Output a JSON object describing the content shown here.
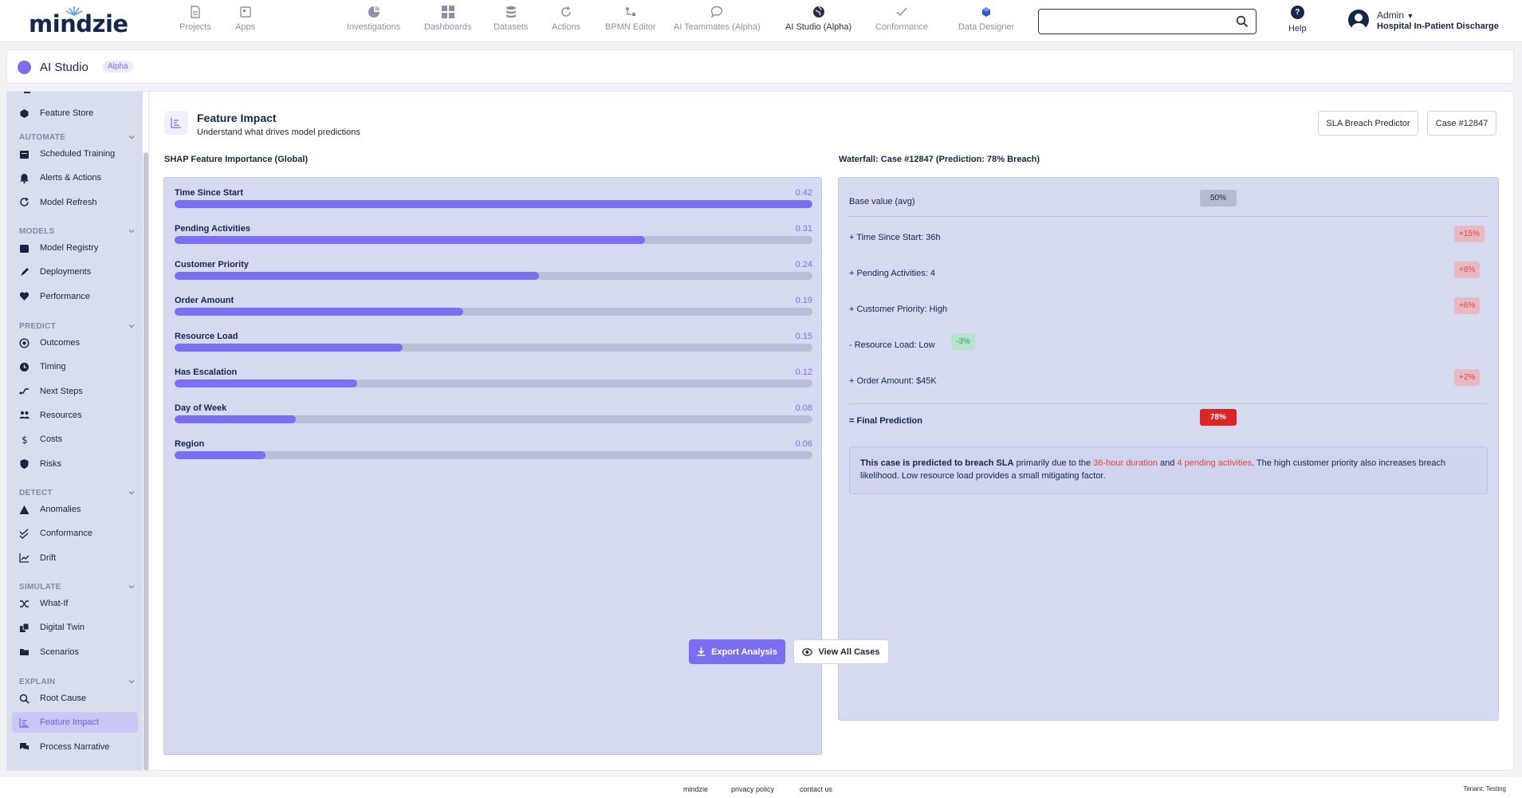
{
  "app": {
    "logo": "mindzie"
  },
  "nav": {
    "items": [
      {
        "label": "Projects",
        "icon": "document-icon"
      },
      {
        "label": "Apps",
        "icon": "apps-icon"
      },
      {
        "label": "Investigations",
        "icon": "investigations-icon"
      },
      {
        "label": "Dashboards",
        "icon": "dashboards-icon"
      },
      {
        "label": "Datasets",
        "icon": "database-icon"
      },
      {
        "label": "Actions",
        "icon": "actions-icon"
      },
      {
        "label": "BPMN Editor",
        "icon": "bpmn-icon"
      },
      {
        "label": "AI Teammates (Alpha)",
        "icon": "chat-icon"
      },
      {
        "label": "AI Studio (Alpha)",
        "icon": "globe-icon"
      },
      {
        "label": "Conformance",
        "icon": "check-icon"
      },
      {
        "label": "Data Designer",
        "icon": "data-designer-icon"
      }
    ],
    "search": {
      "placeholder": ""
    },
    "help_label": "Help",
    "user": {
      "name": "Admin",
      "org": "Hospital In-Patient Discharge"
    }
  },
  "page": {
    "title": "AI Studio",
    "badge": "Alpha"
  },
  "sidebar": {
    "top_item": "Feature Store",
    "sections": [
      {
        "title": "AUTOMATE",
        "items": [
          "Scheduled Training",
          "Alerts & Actions",
          "Model Refresh"
        ]
      },
      {
        "title": "MODELS",
        "items": [
          "Model Registry",
          "Deployments",
          "Performance"
        ]
      },
      {
        "title": "PREDICT",
        "items": [
          "Outcomes",
          "Timing",
          "Next Steps",
          "Resources",
          "Costs",
          "Risks"
        ]
      },
      {
        "title": "DETECT",
        "items": [
          "Anomalies",
          "Conformance",
          "Drift"
        ]
      },
      {
        "title": "SIMULATE",
        "items": [
          "What-If",
          "Digital Twin",
          "Scenarios"
        ]
      },
      {
        "title": "EXPLAIN",
        "items": [
          "Root Cause",
          "Feature Impact",
          "Process Narrative"
        ]
      }
    ],
    "active_item": "Feature Impact"
  },
  "feature_impact": {
    "title": "Feature Impact",
    "subtitle": "Understand what drives model predictions",
    "model_button": "SLA Breach Predictor",
    "case_button": "Case #12847"
  },
  "shap": {
    "title": "SHAP Feature Importance (Global)",
    "features": [
      {
        "name": "Time Since Start",
        "value": "0.42",
        "fraction": 1.0
      },
      {
        "name": "Pending Activities",
        "value": "0.31",
        "fraction": 0.738
      },
      {
        "name": "Customer Priority",
        "value": "0.24",
        "fraction": 0.571
      },
      {
        "name": "Order Amount",
        "value": "0.19",
        "fraction": 0.452
      },
      {
        "name": "Resource Load",
        "value": "0.15",
        "fraction": 0.357
      },
      {
        "name": "Has Escalation",
        "value": "0.12",
        "fraction": 0.286
      },
      {
        "name": "Day of Week",
        "value": "0.08",
        "fraction": 0.19
      },
      {
        "name": "Region",
        "value": "0.06",
        "fraction": 0.143
      }
    ]
  },
  "waterfall": {
    "title": "Waterfall: Case #12847 (Prediction: 78% Breach)",
    "base": {
      "label": "Base value (avg)",
      "value": "50%"
    },
    "rows": [
      {
        "label": "+ Time Since Start: 36h",
        "value": "+15%",
        "direction": "up"
      },
      {
        "label": "+ Pending Activities: 4",
        "value": "+8%",
        "direction": "up"
      },
      {
        "label": "+ Customer Priority: High",
        "value": "+6%",
        "direction": "up"
      },
      {
        "label": "- Resource Load: Low",
        "value": "-3%",
        "direction": "down"
      },
      {
        "label": "+ Order Amount: $45K",
        "value": "+2%",
        "direction": "up"
      }
    ],
    "final": {
      "label": "= Final Prediction",
      "value": "78%"
    },
    "explanation": {
      "lead": "This case is predicted to breach SLA",
      "t1": " primarily due to the ",
      "h1": "36-hour duration",
      "t2": " and ",
      "h2": "4 pending activities",
      "t3": ". The high customer priority also increases breach likelihood. Low resource load provides a small mitigating factor."
    }
  },
  "actions": {
    "export": "Export Analysis",
    "view_all": "View All Cases"
  },
  "footer": {
    "links": [
      "mindzie",
      "privacy policy",
      "contact us"
    ],
    "tenant": "Tenant: Testing"
  },
  "colors": {
    "accent": "#7c6ef0",
    "positive_bg": "#e9b9c3",
    "positive_text": "#e0463c",
    "negative_bg": "#b7e3cd",
    "negative_text": "#2fa66a",
    "final_bg": "#dc2626"
  }
}
